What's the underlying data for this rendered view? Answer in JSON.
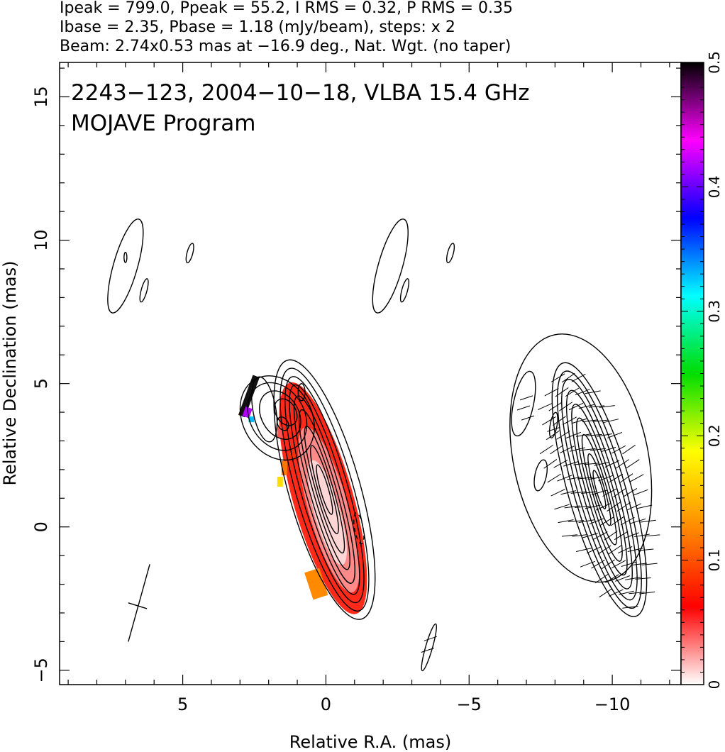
{
  "header": {
    "line1": "Ipeak = 799.0, Ppeak = 55.2, I RMS = 0.32, P RMS = 0.35",
    "line2": "Ibase = 2.35, Pbase = 1.18 (mJy/beam), steps: x 2",
    "line3": "Beam: 2.74x0.53 mas at −16.9 deg., Nat. Wgt. (no taper)"
  },
  "chart_data": {
    "type": "heatmap",
    "title": "2243−123, 2004−10−18, VLBA 15.4 GHz",
    "subtitle": "MOJAVE Program",
    "xlabel": "Relative R.A. (mas)",
    "ylabel": "Relative Declination (mas)",
    "xlim": [
      9.3,
      -12.4
    ],
    "ylim": [
      -5.5,
      16.2
    ],
    "x_ticks": [
      5,
      0,
      -5,
      -10
    ],
    "x_tick_labels": [
      "5",
      "0",
      "−5",
      "−10"
    ],
    "y_ticks": [
      -5,
      0,
      5,
      10,
      15
    ],
    "y_tick_labels": [
      "−5",
      "0",
      "5",
      "10",
      "15"
    ],
    "colorbar": {
      "range": [
        0,
        0.5
      ],
      "ticks": [
        0,
        0.1,
        0.2,
        0.3,
        0.4,
        0.5
      ],
      "tick_labels": [
        "0",
        "0.1",
        "0.2",
        "0.3",
        "0.4",
        "0.5"
      ],
      "colors": [
        "#ffffff",
        "#ff0000",
        "#ff8800",
        "#ffff00",
        "#00dd00",
        "#00ffff",
        "#0000ff",
        "#ff00ff",
        "#000000"
      ]
    },
    "beam": {
      "major_mas": 2.74,
      "minor_mas": 0.53,
      "pa_deg": -16.9
    },
    "left_contour_center": [
      0,
      1
    ],
    "right_vector_center": [
      -9.6,
      1
    ],
    "grid": false
  }
}
